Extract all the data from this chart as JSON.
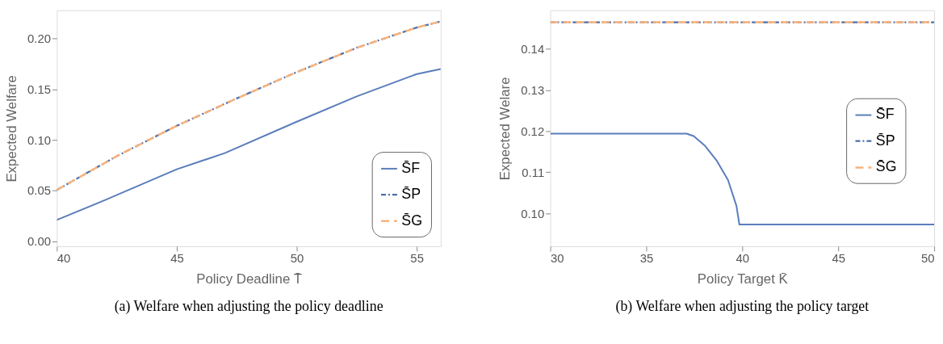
{
  "chart_data": [
    {
      "type": "line",
      "xlabel": "Policy Deadline T̄",
      "ylabel": "Expected Welfare",
      "annotations": [
        "(a) Welfare when adjusting the policy deadline"
      ],
      "xlim": [
        40,
        56
      ],
      "ylim": [
        -0.005,
        0.228
      ],
      "xticks": [
        40,
        45,
        50,
        55
      ],
      "yticks": [
        {
          "value": 0,
          "label": "0.00"
        },
        0.05,
        {
          "value": 0.1,
          "label": "0.10"
        },
        0.15,
        {
          "value": 0.2,
          "label": "0.20"
        }
      ],
      "grid": false,
      "legend": "bottom right",
      "marker": "none",
      "series": [
        {
          "name": "S̄F",
          "color": "#5a7dbb",
          "line_style": "solid",
          "x": [
            40,
            42,
            45,
            47,
            50,
            52.5,
            55,
            56
          ],
          "values": [
            0.021,
            0.0405,
            0.071,
            0.087,
            0.118,
            0.143,
            0.165,
            0.17
          ]
        },
        {
          "name": "S̄P",
          "color": "#4a6fae",
          "line_style": "dotted",
          "x": [
            40,
            42.5,
            45,
            47.5,
            50,
            52.5,
            55,
            56
          ],
          "values": [
            0.0506,
            0.084,
            0.114,
            0.141,
            0.167,
            0.191,
            0.211,
            0.217
          ]
        },
        {
          "name": "S̄G",
          "color": "#f9b27a",
          "line_style": "dashed",
          "x": [
            40,
            42.5,
            45,
            47.5,
            50,
            52.5,
            55,
            56
          ],
          "values": [
            0.0506,
            0.084,
            0.114,
            0.141,
            0.167,
            0.191,
            0.211,
            0.217
          ]
        }
      ]
    },
    {
      "type": "line",
      "xlabel": "Policy Target K̄",
      "ylabel": "Expected Welare",
      "annotations": [
        "(b) Welfare when adjusting the policy target"
      ],
      "xlim": [
        30,
        50
      ],
      "ylim": [
        0.092,
        0.1494
      ],
      "xticks": [
        30,
        35,
        40,
        45,
        50
      ],
      "yticks": [
        {
          "value": 0.1,
          "label": "0.10"
        },
        0.11,
        0.12,
        0.13,
        0.14
      ],
      "grid": false,
      "legend": "right",
      "marker": "none",
      "series": [
        {
          "name": "S̄F",
          "color": "#5a7dbb",
          "line_style": "solid",
          "x": [
            30,
            37.1,
            37.47,
            38.07,
            38.66,
            39.26,
            39.7,
            39.85,
            50
          ],
          "values": [
            0.1194,
            0.1194,
            0.1188,
            0.1164,
            0.1129,
            0.1081,
            0.1018,
            0.0973,
            0.0973
          ]
        },
        {
          "name": "S̄P",
          "color": "#4a6fae",
          "line_style": "dotted",
          "x": [
            30,
            50
          ],
          "values": [
            0.1465,
            0.1465
          ]
        },
        {
          "name": "S̄G",
          "color": "#f9b27a",
          "line_style": "dashed",
          "x": [
            30,
            50
          ],
          "values": [
            0.1465,
            0.1465
          ]
        }
      ]
    }
  ]
}
